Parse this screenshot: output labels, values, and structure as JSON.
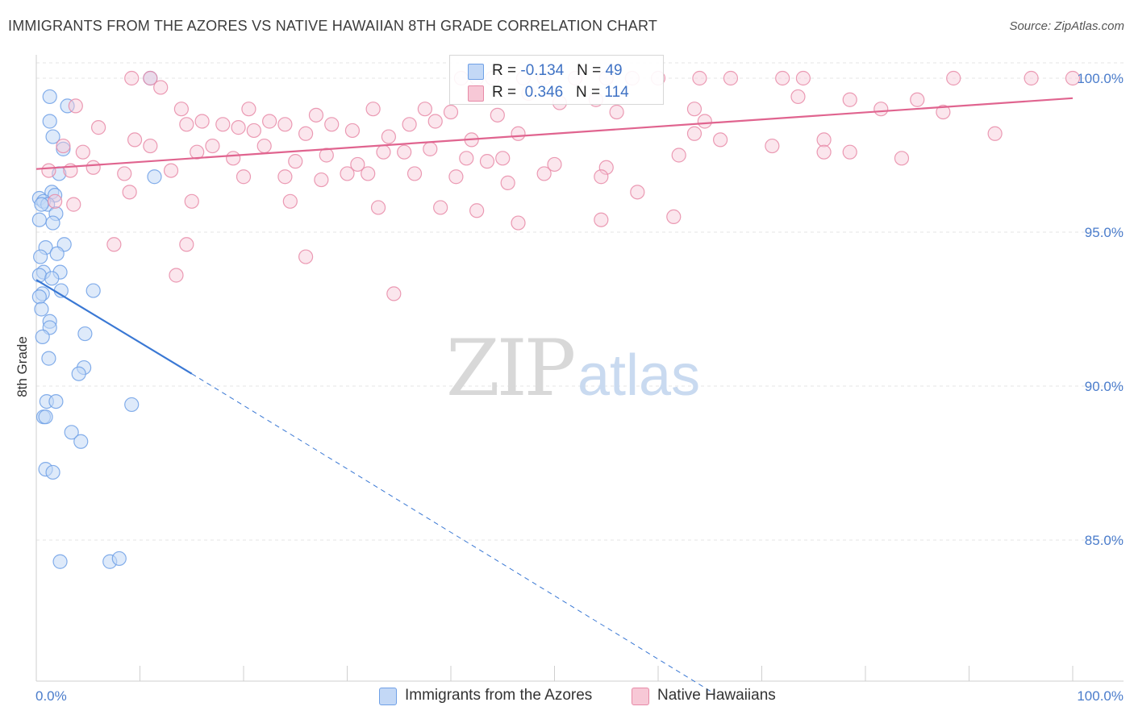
{
  "chart_data": {
    "type": "scatter",
    "title": "IMMIGRANTS FROM THE AZORES VS NATIVE HAWAIIAN 8TH GRADE CORRELATION CHART",
    "source": "Source: ZipAtlas.com",
    "xlabel": "",
    "ylabel": "8th Grade",
    "xlim": [
      0,
      100
    ],
    "ylim": [
      80.0,
      101.0
    ],
    "x_tick_labels": [
      "0.0%",
      "100.0%"
    ],
    "y_ticks": [
      {
        "value": 100.0,
        "label": "100.0%"
      },
      {
        "value": 95.0,
        "label": "95.0%"
      },
      {
        "value": 90.0,
        "label": "90.0%"
      },
      {
        "value": 85.0,
        "label": "85.0%"
      }
    ],
    "watermark": {
      "zip": "ZIP",
      "atlas": "atlas"
    },
    "legend": [
      {
        "r_label": "R = ",
        "r_value": "-0.134",
        "n_label": "N = ",
        "n_value": "49"
      },
      {
        "r_label": "R = ",
        "r_value": "0.346",
        "n_label": "N = ",
        "n_value": "114"
      }
    ],
    "series": [
      {
        "name": "Immigrants from the Azores",
        "color": "#6fa0e6",
        "fill": "#c3d8f6",
        "line_color": "#3a78d4",
        "trend": {
          "x0": 0.0,
          "y0": 93.45,
          "x1": 15.0,
          "y1": 90.4,
          "dash_to_x": 65.5,
          "dash_to_y": 80.0
        },
        "points": [
          [
            11.0,
            100.0
          ],
          [
            1.3,
            99.4
          ],
          [
            3.0,
            99.1
          ],
          [
            1.3,
            98.6
          ],
          [
            1.6,
            98.1
          ],
          [
            2.6,
            97.7
          ],
          [
            2.2,
            96.9
          ],
          [
            11.4,
            96.8
          ],
          [
            1.5,
            96.3
          ],
          [
            1.8,
            96.2
          ],
          [
            0.3,
            96.1
          ],
          [
            0.7,
            96.0
          ],
          [
            1.1,
            95.9
          ],
          [
            0.5,
            95.9
          ],
          [
            1.9,
            95.6
          ],
          [
            0.3,
            95.4
          ],
          [
            1.6,
            95.3
          ],
          [
            2.7,
            94.6
          ],
          [
            0.9,
            94.5
          ],
          [
            2.0,
            94.3
          ],
          [
            0.4,
            94.2
          ],
          [
            2.3,
            93.7
          ],
          [
            0.7,
            93.7
          ],
          [
            0.3,
            93.6
          ],
          [
            1.5,
            93.5
          ],
          [
            5.5,
            93.1
          ],
          [
            2.4,
            93.1
          ],
          [
            0.6,
            93.0
          ],
          [
            0.3,
            92.9
          ],
          [
            0.5,
            92.5
          ],
          [
            1.3,
            92.1
          ],
          [
            1.3,
            91.9
          ],
          [
            4.7,
            91.7
          ],
          [
            0.6,
            91.6
          ],
          [
            1.2,
            90.9
          ],
          [
            4.6,
            90.6
          ],
          [
            4.1,
            90.4
          ],
          [
            1.0,
            89.5
          ],
          [
            1.9,
            89.5
          ],
          [
            9.2,
            89.4
          ],
          [
            0.7,
            89.0
          ],
          [
            0.9,
            89.0
          ],
          [
            3.4,
            88.5
          ],
          [
            4.3,
            88.2
          ],
          [
            0.9,
            87.3
          ],
          [
            1.6,
            87.2
          ],
          [
            2.3,
            84.3
          ],
          [
            7.1,
            84.3
          ],
          [
            8.0,
            84.4
          ]
        ]
      },
      {
        "name": "Native Hawaiians",
        "color": "#e78aa7",
        "fill": "#f7c8d6",
        "line_color": "#e0648f",
        "trend": {
          "x0": 0.0,
          "y0": 97.05,
          "x1": 100.0,
          "y1": 99.35
        },
        "points": [
          [
            9.2,
            100.0
          ],
          [
            11.0,
            100.0
          ],
          [
            41.0,
            100.0
          ],
          [
            42.5,
            100.0
          ],
          [
            44.0,
            100.0
          ],
          [
            47.0,
            100.0
          ],
          [
            49.0,
            100.0
          ],
          [
            52.0,
            100.0
          ],
          [
            55.0,
            100.0
          ],
          [
            57.5,
            100.0
          ],
          [
            60.0,
            100.0
          ],
          [
            64.0,
            100.0
          ],
          [
            67.0,
            100.0
          ],
          [
            72.0,
            100.0
          ],
          [
            74.0,
            100.0
          ],
          [
            88.5,
            100.0
          ],
          [
            96.0,
            100.0
          ],
          [
            100.0,
            100.0
          ],
          [
            12.0,
            99.7
          ],
          [
            47.5,
            99.5
          ],
          [
            50.5,
            99.2
          ],
          [
            54.0,
            99.3
          ],
          [
            63.5,
            99.0
          ],
          [
            78.5,
            99.3
          ],
          [
            37.5,
            99.0
          ],
          [
            3.8,
            99.1
          ],
          [
            14.0,
            99.0
          ],
          [
            20.5,
            99.0
          ],
          [
            27.0,
            98.8
          ],
          [
            32.5,
            99.0
          ],
          [
            38.5,
            98.6
          ],
          [
            40.0,
            98.9
          ],
          [
            44.5,
            98.8
          ],
          [
            56.0,
            98.9
          ],
          [
            64.5,
            98.6
          ],
          [
            73.5,
            99.4
          ],
          [
            81.5,
            99.0
          ],
          [
            87.5,
            98.9
          ],
          [
            85.0,
            99.3
          ],
          [
            6.0,
            98.4
          ],
          [
            14.5,
            98.5
          ],
          [
            16.0,
            98.6
          ],
          [
            18.0,
            98.5
          ],
          [
            19.5,
            98.4
          ],
          [
            21.0,
            98.3
          ],
          [
            22.5,
            98.6
          ],
          [
            24.0,
            98.5
          ],
          [
            26.0,
            98.2
          ],
          [
            28.5,
            98.5
          ],
          [
            30.5,
            98.3
          ],
          [
            34.0,
            98.1
          ],
          [
            36.0,
            98.5
          ],
          [
            42.0,
            98.0
          ],
          [
            46.5,
            98.2
          ],
          [
            63.5,
            98.2
          ],
          [
            66.0,
            98.0
          ],
          [
            76.0,
            98.0
          ],
          [
            92.5,
            98.2
          ],
          [
            2.6,
            97.8
          ],
          [
            4.5,
            97.6
          ],
          [
            9.5,
            98.0
          ],
          [
            11.0,
            97.8
          ],
          [
            15.5,
            97.6
          ],
          [
            17.0,
            97.8
          ],
          [
            19.0,
            97.4
          ],
          [
            22.0,
            97.8
          ],
          [
            25.0,
            97.3
          ],
          [
            28.0,
            97.5
          ],
          [
            31.0,
            97.2
          ],
          [
            33.5,
            97.6
          ],
          [
            35.5,
            97.6
          ],
          [
            38.0,
            97.7
          ],
          [
            41.5,
            97.4
          ],
          [
            43.5,
            97.3
          ],
          [
            45.0,
            97.4
          ],
          [
            50.0,
            97.2
          ],
          [
            55.0,
            97.1
          ],
          [
            62.0,
            97.5
          ],
          [
            71.0,
            97.8
          ],
          [
            76.0,
            97.6
          ],
          [
            83.5,
            97.4
          ],
          [
            78.5,
            97.6
          ],
          [
            1.2,
            97.0
          ],
          [
            3.3,
            97.0
          ],
          [
            5.5,
            97.1
          ],
          [
            8.5,
            96.9
          ],
          [
            13.0,
            97.0
          ],
          [
            20.0,
            96.8
          ],
          [
            24.0,
            96.8
          ],
          [
            27.5,
            96.7
          ],
          [
            30.0,
            96.9
          ],
          [
            32.0,
            96.9
          ],
          [
            36.5,
            96.9
          ],
          [
            40.5,
            96.8
          ],
          [
            45.5,
            96.6
          ],
          [
            49.0,
            96.9
          ],
          [
            54.5,
            96.8
          ],
          [
            58.0,
            96.3
          ],
          [
            1.8,
            96.0
          ],
          [
            3.6,
            95.9
          ],
          [
            9.0,
            96.3
          ],
          [
            15.0,
            96.0
          ],
          [
            24.5,
            96.0
          ],
          [
            33.0,
            95.8
          ],
          [
            39.0,
            95.8
          ],
          [
            42.5,
            95.7
          ],
          [
            46.5,
            95.3
          ],
          [
            54.5,
            95.4
          ],
          [
            61.5,
            95.5
          ],
          [
            7.5,
            94.6
          ],
          [
            14.5,
            94.6
          ],
          [
            26.0,
            94.2
          ],
          [
            13.5,
            93.6
          ],
          [
            34.5,
            93.0
          ]
        ]
      }
    ]
  }
}
